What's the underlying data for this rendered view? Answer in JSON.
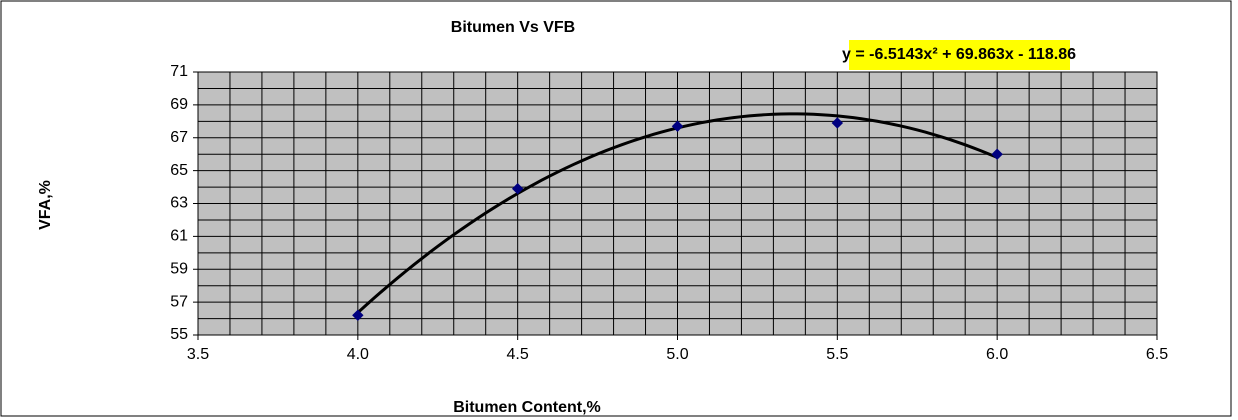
{
  "chart_data": {
    "type": "scatter",
    "title": "Bitumen Vs VFB",
    "xlabel": "Bitumen Content,%",
    "ylabel": "VFA,%",
    "x": [
      4.0,
      4.5,
      5.0,
      5.5,
      6.0
    ],
    "values": [
      56.2,
      63.9,
      67.7,
      67.9,
      66.0
    ],
    "color": "#000080",
    "xlim": [
      3.5,
      6.5
    ],
    "ylim": [
      55,
      71
    ],
    "xticks": [
      3.5,
      {
        "value": 4,
        "label": "4.0"
      },
      4.5,
      {
        "value": 5,
        "label": "5.0"
      },
      5.5,
      {
        "value": 6,
        "label": "6.0"
      },
      6.5
    ],
    "yticks": [
      55,
      57,
      59,
      61,
      63,
      65,
      67,
      69,
      71
    ],
    "xgrid": [
      3.5,
      3.6,
      3.7,
      3.8,
      3.9,
      4.0,
      4.1,
      4.2,
      4.3,
      4.4,
      4.5,
      4.6,
      4.7,
      4.8,
      4.9,
      5.0,
      5.1,
      5.2,
      5.3,
      5.4,
      5.5,
      5.6,
      5.7,
      5.8,
      5.9,
      6.0,
      6.1,
      6.2,
      6.3,
      6.4,
      6.5
    ],
    "ygrid": [
      55,
      56,
      57,
      58,
      59,
      60,
      61,
      62,
      63,
      64,
      65,
      66,
      67,
      68,
      69,
      70,
      71
    ],
    "grid": true,
    "trendline": {
      "type": "polynomial",
      "coefficients": [
        -6.5143,
        69.863,
        -118.86
      ],
      "color": "#000000",
      "label": "y = -6.5143x² + 69.863x - 118.86"
    }
  }
}
